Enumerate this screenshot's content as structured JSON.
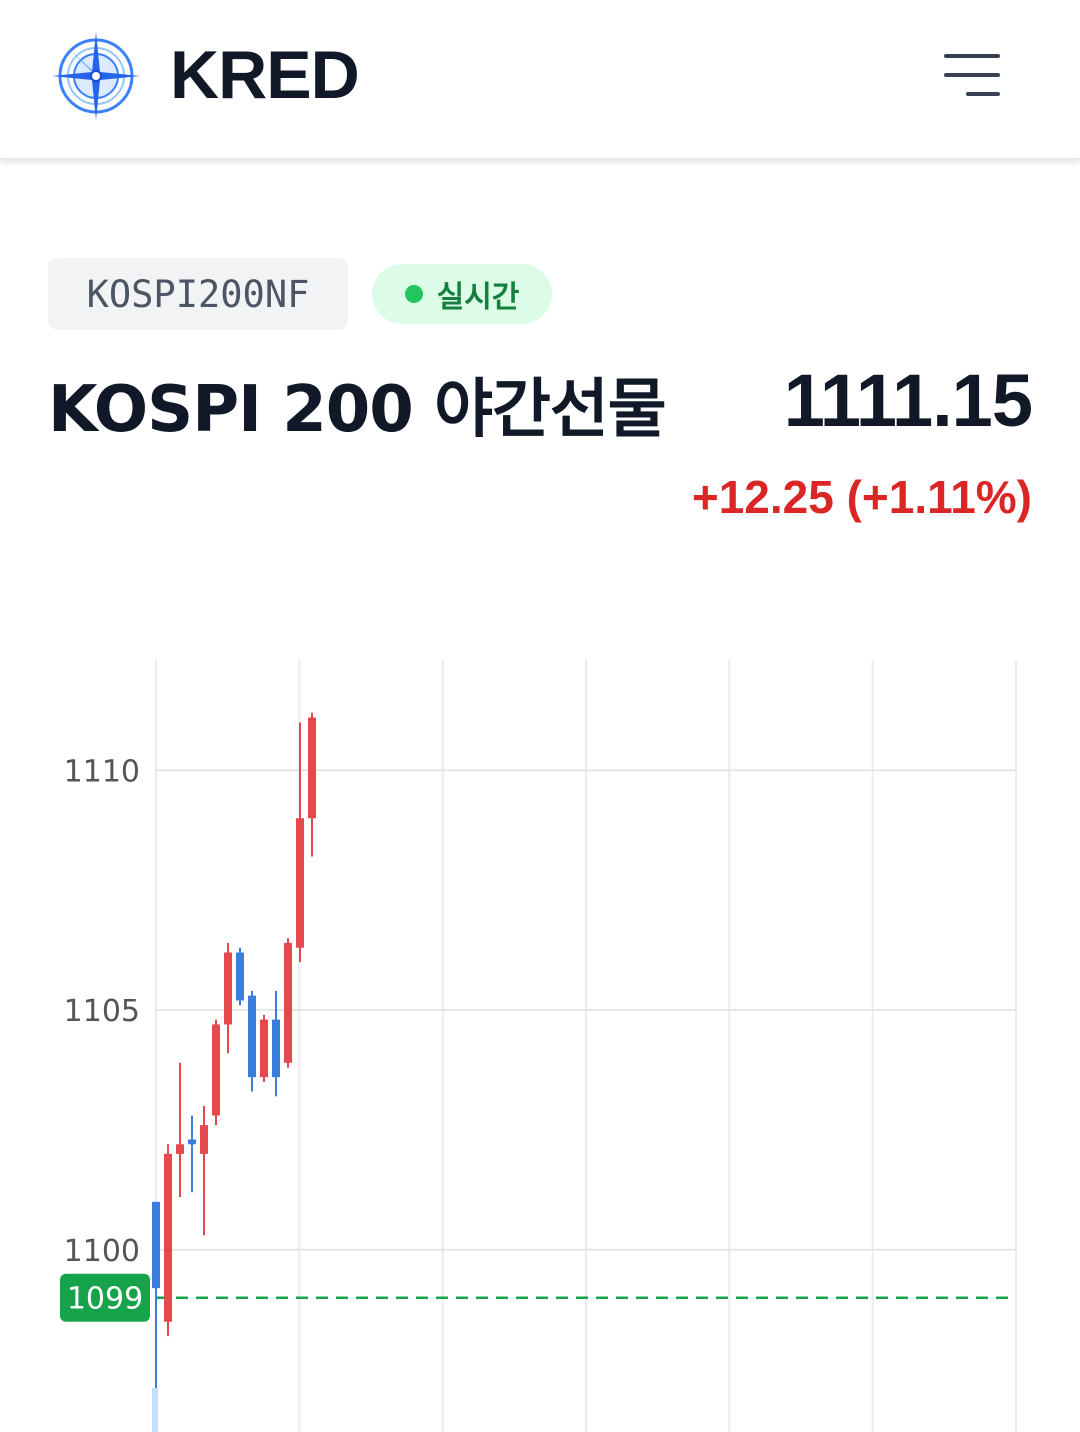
{
  "header": {
    "brand": "KRED",
    "logo_icon": "compass-rose-icon",
    "menu_icon": "hamburger-menu-icon",
    "brand_color": "#3b82f6"
  },
  "instrument": {
    "ticker": "KOSPI200NF",
    "status": "실시간",
    "name": "KOSPI 200 야간선물",
    "price": "1111.15",
    "change": "+12.25 (+1.11%)",
    "up_color": "#dc2626",
    "live_color": "#22c55e"
  },
  "chart_data": {
    "type": "candlestick",
    "y_ticks": [
      1100,
      1105,
      1110
    ],
    "ylim": [
      1096.2,
      1112.3
    ],
    "reference_line": {
      "value": 1099,
      "label": "1099",
      "color": "#16a34a"
    },
    "grid": true,
    "up_color": "#e5484d",
    "down_color": "#3b7ddd",
    "candles": [
      {
        "open": 1101.0,
        "high": 1101.0,
        "low": 1097.0,
        "close": 1099.2
      },
      {
        "open": 1098.5,
        "high": 1102.2,
        "low": 1098.2,
        "close": 1102.0
      },
      {
        "open": 1102.0,
        "high": 1103.9,
        "low": 1101.1,
        "close": 1102.2
      },
      {
        "open": 1102.3,
        "high": 1102.8,
        "low": 1101.2,
        "close": 1102.2
      },
      {
        "open": 1102.0,
        "high": 1103.0,
        "low": 1100.3,
        "close": 1102.6
      },
      {
        "open": 1102.8,
        "high": 1104.8,
        "low": 1102.6,
        "close": 1104.7
      },
      {
        "open": 1104.7,
        "high": 1106.4,
        "low": 1104.1,
        "close": 1106.2
      },
      {
        "open": 1106.2,
        "high": 1106.3,
        "low": 1105.1,
        "close": 1105.2
      },
      {
        "open": 1105.3,
        "high": 1105.4,
        "low": 1103.3,
        "close": 1103.6
      },
      {
        "open": 1103.6,
        "high": 1104.9,
        "low": 1103.5,
        "close": 1104.8
      },
      {
        "open": 1104.8,
        "high": 1105.4,
        "low": 1103.2,
        "close": 1103.6
      },
      {
        "open": 1103.9,
        "high": 1106.5,
        "low": 1103.8,
        "close": 1106.4
      },
      {
        "open": 1106.3,
        "high": 1111.0,
        "low": 1106.0,
        "close": 1109.0
      },
      {
        "open": 1109.0,
        "high": 1111.2,
        "low": 1108.2,
        "close": 1111.1
      }
    ]
  }
}
